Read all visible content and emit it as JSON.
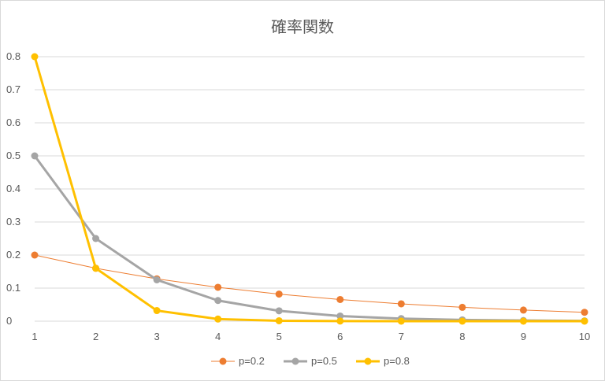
{
  "chart_data": {
    "type": "line",
    "title": "確率関数",
    "x": [
      1,
      2,
      3,
      4,
      5,
      6,
      7,
      8,
      9,
      10
    ],
    "xlim": [
      1,
      10
    ],
    "ylim": [
      0,
      0.8
    ],
    "y_ticks": [
      0,
      0.1,
      0.2,
      0.3,
      0.4,
      0.5,
      0.6,
      0.7,
      0.8
    ],
    "y_tick_labels": [
      "0",
      "0.1",
      "0.2",
      "0.3",
      "0.4",
      "0.5",
      "0.6",
      "0.7",
      "0.8"
    ],
    "x_tick_labels": [
      "1",
      "2",
      "3",
      "4",
      "5",
      "6",
      "7",
      "8",
      "9",
      "10"
    ],
    "grid": "horizontal",
    "legend_position": "bottom",
    "series": [
      {
        "name": "p=0.2",
        "color": "#ed7d31",
        "values": [
          0.2,
          0.16,
          0.128,
          0.1024,
          0.0819,
          0.0655,
          0.0524,
          0.0419,
          0.0336,
          0.0268
        ]
      },
      {
        "name": "p=0.5",
        "color": "#a5a5a5",
        "values": [
          0.5,
          0.25,
          0.125,
          0.0625,
          0.0313,
          0.0156,
          0.0078,
          0.0039,
          0.002,
          0.001
        ]
      },
      {
        "name": "p=0.8",
        "color": "#ffc000",
        "values": [
          0.8,
          0.16,
          0.032,
          0.0064,
          0.0013,
          0.0003,
          0.0001,
          0.0,
          0.0,
          0.0
        ]
      }
    ]
  }
}
